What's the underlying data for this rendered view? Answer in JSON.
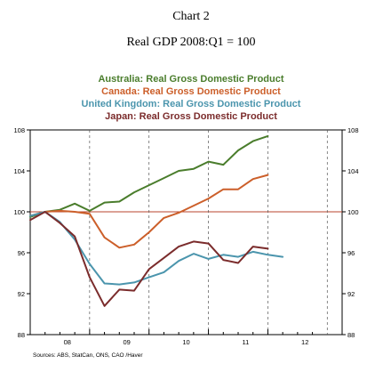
{
  "chart_data": {
    "type": "line",
    "title": "Chart 2",
    "subtitle": "Real GDP 2008:Q1 = 100",
    "source": "Sources:  ABS, StatCan, ONS, CAO /Haver",
    "x_tick_labels": [
      "08",
      "09",
      "10",
      "11",
      "12"
    ],
    "x_range": [
      2007.75,
      2013.0
    ],
    "ylim": [
      88,
      108
    ],
    "y_ticks": [
      88,
      92,
      96,
      100,
      104,
      108
    ],
    "reference_line": 100,
    "grid": false,
    "legend_position": "top",
    "series": [
      {
        "name": "Australia: Real Gross Domestic Product",
        "color": "#4a7d2c",
        "x": [
          2007.75,
          2008.0,
          2008.25,
          2008.5,
          2008.75,
          2009.0,
          2009.25,
          2009.5,
          2009.75,
          2010.0,
          2010.25,
          2010.5,
          2010.75,
          2011.0,
          2011.25,
          2011.5,
          2011.75
        ],
        "values": [
          99.5,
          100.0,
          100.2,
          100.8,
          100.1,
          100.9,
          101.0,
          101.9,
          102.6,
          103.3,
          104.0,
          104.2,
          104.9,
          104.6,
          106.0,
          106.9,
          107.4
        ]
      },
      {
        "name": "Canada: Real Gross Domestic Product",
        "color": "#cc5f2a",
        "x": [
          2007.75,
          2008.0,
          2008.25,
          2008.5,
          2008.75,
          2009.0,
          2009.25,
          2009.5,
          2009.75,
          2010.0,
          2010.25,
          2010.5,
          2010.75,
          2011.0,
          2011.25,
          2011.5,
          2011.75
        ],
        "values": [
          99.6,
          100.0,
          100.1,
          100.0,
          99.8,
          97.5,
          96.5,
          96.8,
          98.0,
          99.4,
          99.9,
          100.6,
          101.3,
          102.2,
          102.2,
          103.2,
          103.6
        ]
      },
      {
        "name": "United Kingdom: Real Gross Domestic Product",
        "color": "#4b95ad",
        "x": [
          2007.75,
          2008.0,
          2008.25,
          2008.5,
          2008.75,
          2009.0,
          2009.25,
          2009.5,
          2009.75,
          2010.0,
          2010.25,
          2010.5,
          2010.75,
          2011.0,
          2011.25,
          2011.5,
          2011.75,
          2012.0
        ],
        "values": [
          99.6,
          100.0,
          99.0,
          97.3,
          94.9,
          93.0,
          92.9,
          93.1,
          93.6,
          94.1,
          95.2,
          95.9,
          95.4,
          95.8,
          95.6,
          96.1,
          95.8,
          95.6
        ]
      },
      {
        "name": "Japan: Real Gross Domestic Product",
        "color": "#7b2c2c",
        "x": [
          2007.75,
          2008.0,
          2008.25,
          2008.5,
          2008.75,
          2009.0,
          2009.25,
          2009.5,
          2009.75,
          2010.0,
          2010.25,
          2010.5,
          2010.75,
          2011.0,
          2011.25,
          2011.5,
          2011.75
        ],
        "values": [
          99.2,
          100.0,
          98.9,
          97.6,
          93.6,
          90.8,
          92.4,
          92.3,
          94.4,
          95.5,
          96.6,
          97.1,
          96.9,
          95.3,
          95.0,
          96.6,
          96.4
        ]
      }
    ]
  }
}
